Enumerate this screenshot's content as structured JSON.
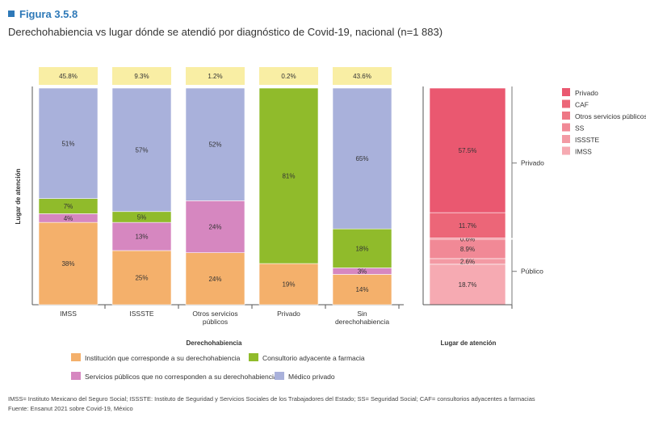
{
  "figure_label": "Figura 3.5.8",
  "title": "Derechohabiencia vs lugar dónde se atendió por diagnóstico de Covid-19, nacional (n=1 883)",
  "footnote_1": "IMSS= Instituto Mexicano del Seguro Social; ISSSTE: Instituto de Seguridad y Servicios Sociales de los Trabajadores del Estado; SS= Seguridad Social; CAF= consultorios adyacentes a farmacias",
  "footnote_2": "Fuente: Ensanut 2021 sobre Covid-19, México",
  "chart_data": [
    {
      "type": "bar",
      "stacked": true,
      "xlabel": "Derechohabiencia",
      "ylabel": "Lugar de atención",
      "categories": [
        "IMSS",
        "ISSSTE",
        "Otros servicios públicos",
        "Privado",
        "Sin derechohabiencia"
      ],
      "category_lines": [
        [
          "IMSS"
        ],
        [
          "ISSSTE"
        ],
        [
          "Otros servicios",
          "públicos"
        ],
        [
          "Privado"
        ],
        [
          "Sin",
          "derechohabiencia"
        ]
      ],
      "top_labels": [
        "45.8%",
        "9.3%",
        "1.2%",
        "0.2%",
        "43.6%"
      ],
      "series": [
        {
          "name": "Institución que corresponde a su derechohabiencia",
          "color": "#f4b06b",
          "values": [
            38,
            25,
            24,
            19,
            14
          ],
          "labels": [
            "38%",
            "25%",
            "24%",
            "19%",
            "14%"
          ]
        },
        {
          "name": "Servicios públicos que no corresponden a su derechohabiencia",
          "color": "#d687c0",
          "values": [
            4,
            13,
            24,
            0,
            3
          ],
          "labels": [
            "4%",
            "13%",
            "24%",
            "",
            "3%"
          ]
        },
        {
          "name": "Consultorio adyacente a farmacia",
          "color": "#90bb2b",
          "values": [
            7,
            5,
            0,
            81,
            18
          ],
          "labels": [
            "7%",
            "5%",
            "",
            "81%",
            "18%"
          ]
        },
        {
          "name": "Médico privado",
          "color": "#a9b1db",
          "values": [
            51,
            57,
            52,
            0,
            65
          ],
          "labels": [
            "51%",
            "57%",
            "52%",
            "",
            "65%"
          ]
        }
      ],
      "legend_order": [
        0,
        2,
        1,
        3
      ],
      "ylim": [
        0,
        100
      ]
    },
    {
      "type": "bar",
      "stacked": true,
      "xlabel": "Lugar de atención",
      "segments": [
        {
          "name": "IMSS",
          "value": 18.7,
          "label": "18.7%",
          "color": "#f6aab2"
        },
        {
          "name": "ISSSTE",
          "value": 2.6,
          "label": "2.6%",
          "color": "#f39aa4"
        },
        {
          "name": "SS",
          "value": 8.9,
          "label": "8.9%",
          "color": "#f18996"
        },
        {
          "name": "Otros servicios públicos",
          "value": 0.6,
          "label": "0.6%",
          "color": "#ee7886"
        },
        {
          "name": "CAF",
          "value": 11.7,
          "label": "11.7%",
          "color": "#ec6678"
        },
        {
          "name": "Privado",
          "value": 57.5,
          "label": "57.5%",
          "color": "#ea5870"
        }
      ],
      "groups": [
        {
          "name": "Privado",
          "members": [
            "CAF",
            "Privado"
          ]
        },
        {
          "name": "Público",
          "members": [
            "IMSS",
            "ISSSTE",
            "SS",
            "Otros servicios públicos"
          ]
        }
      ],
      "legend_order": [
        "Privado",
        "CAF",
        "Otros servicios públicos",
        "SS",
        "ISSSTE",
        "IMSS"
      ],
      "ylim": [
        0,
        100
      ]
    }
  ]
}
